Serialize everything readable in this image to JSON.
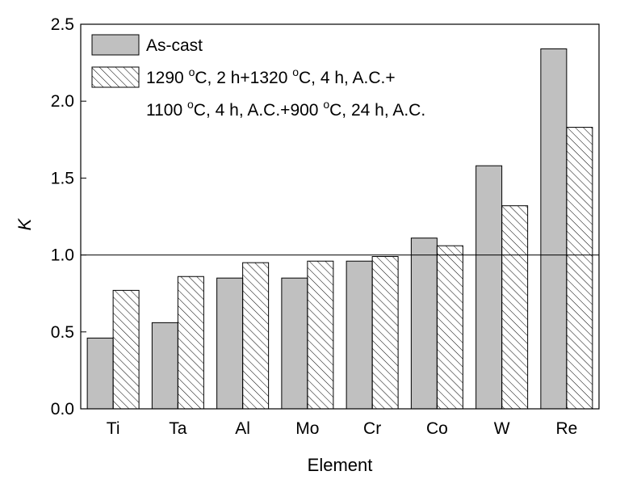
{
  "chart_data": {
    "type": "bar",
    "xlabel": "Element",
    "ylabel": "K",
    "ylim": [
      0,
      2.5
    ],
    "yticks": [
      "0.0",
      "0.5",
      "1.0",
      "1.5",
      "2.0",
      "2.5"
    ],
    "categories": [
      "Ti",
      "Ta",
      "Al",
      "Mo",
      "Cr",
      "Co",
      "W",
      "Re"
    ],
    "series": [
      {
        "name": "As-cast",
        "fill": "solid-gray",
        "color": "#c0c0c0",
        "values": [
          0.46,
          0.56,
          0.85,
          0.85,
          0.96,
          1.11,
          1.58,
          2.34
        ]
      },
      {
        "name": "1290 °C, 2 h+1320 °C, 4 h, A.C.+ 1100 °C, 4 h, A.C.+900 °C, 24 h, A.C.",
        "fill": "hatched",
        "color": "#ffffff",
        "values": [
          0.77,
          0.86,
          0.95,
          0.96,
          0.99,
          1.06,
          1.32,
          1.83
        ]
      }
    ],
    "reference_line": {
      "y": 1.0
    },
    "legend": {
      "position": "top-left",
      "entries": [
        {
          "text": "As-cast"
        },
        {
          "line1_parts": [
            "1290 ",
            "o",
            "C, 2 h+1320 ",
            "o",
            "C, 4 h, A.C.+"
          ],
          "line2_parts": [
            "1100 ",
            "o",
            "C, 4 h, A.C.+900 ",
            "o",
            "C, 24 h, A.C."
          ]
        }
      ]
    },
    "grid": false
  }
}
